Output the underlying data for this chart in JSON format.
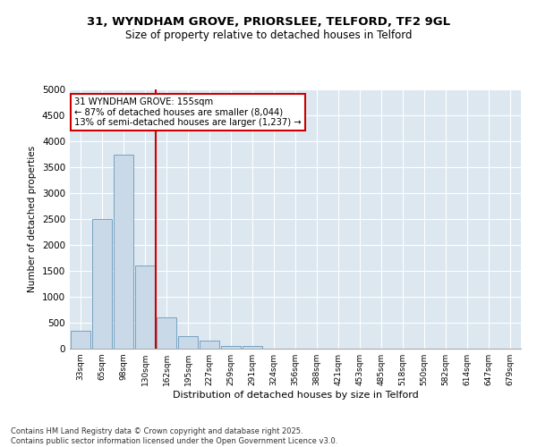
{
  "title1": "31, WYNDHAM GROVE, PRIORSLEE, TELFORD, TF2 9GL",
  "title2": "Size of property relative to detached houses in Telford",
  "xlabel": "Distribution of detached houses by size in Telford",
  "ylabel": "Number of detached properties",
  "categories": [
    "33sqm",
    "65sqm",
    "98sqm",
    "130sqm",
    "162sqm",
    "195sqm",
    "227sqm",
    "259sqm",
    "291sqm",
    "324sqm",
    "356sqm",
    "388sqm",
    "421sqm",
    "453sqm",
    "485sqm",
    "518sqm",
    "550sqm",
    "582sqm",
    "614sqm",
    "647sqm",
    "679sqm"
  ],
  "values": [
    350,
    2500,
    3750,
    1600,
    610,
    250,
    150,
    55,
    50,
    0,
    0,
    0,
    0,
    0,
    0,
    0,
    0,
    0,
    0,
    0,
    0
  ],
  "bar_color": "#c9d9e8",
  "bar_edge_color": "#6699bb",
  "vline_color": "#cc0000",
  "vline_index": 4,
  "annotation_text": "31 WYNDHAM GROVE: 155sqm\n← 87% of detached houses are smaller (8,044)\n13% of semi-detached houses are larger (1,237) →",
  "annotation_box_color": "#cc0000",
  "ylim": [
    0,
    5000
  ],
  "yticks": [
    0,
    500,
    1000,
    1500,
    2000,
    2500,
    3000,
    3500,
    4000,
    4500,
    5000
  ],
  "bg_color": "#dce7f0",
  "footer_line1": "Contains HM Land Registry data © Crown copyright and database right 2025.",
  "footer_line2": "Contains public sector information licensed under the Open Government Licence v3.0."
}
